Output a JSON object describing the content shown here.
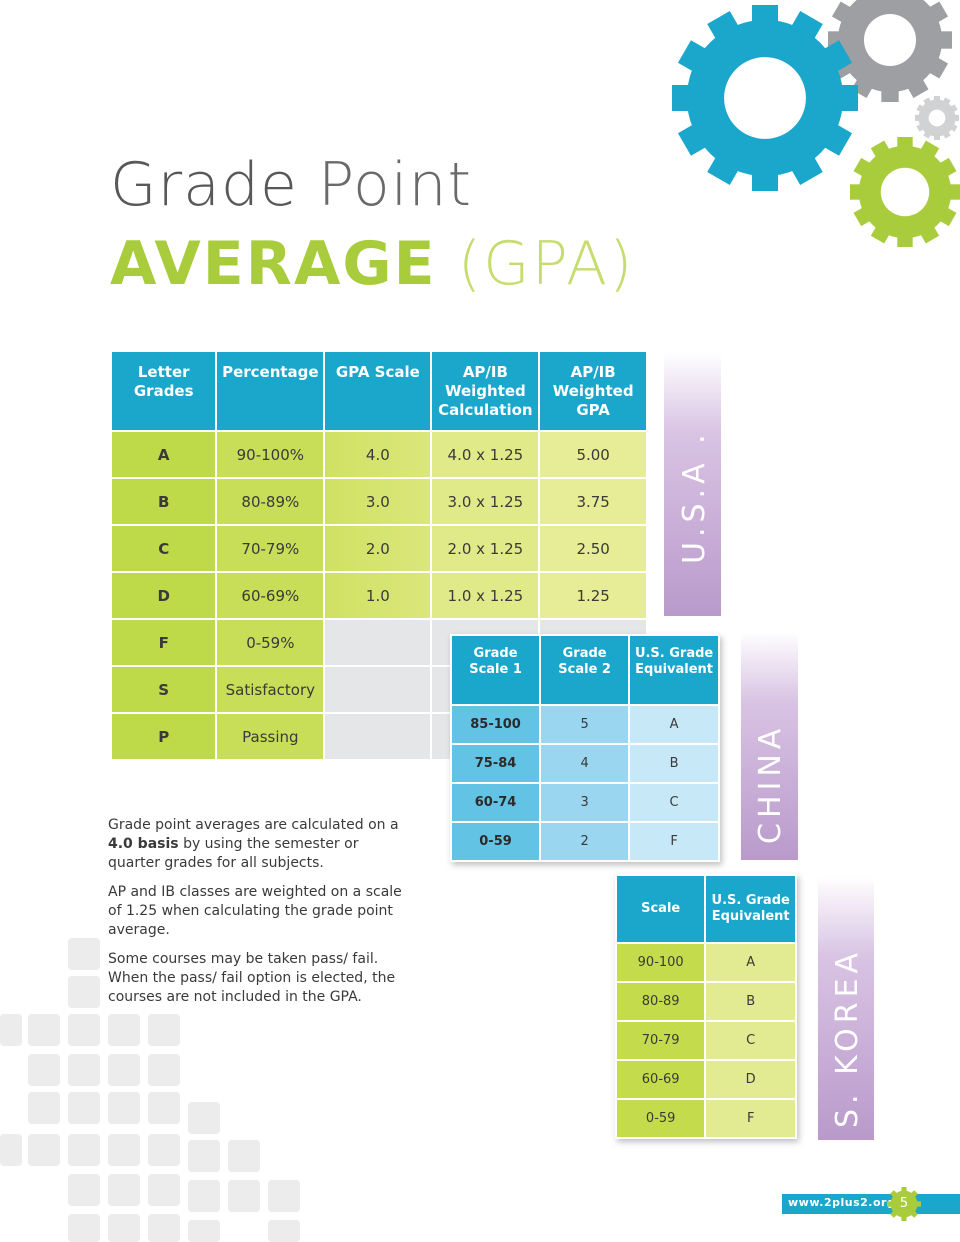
{
  "title": {
    "line1_a": "Grade",
    "line1_b": "Point",
    "line2_a": "AVERAGE",
    "line2_b": "(GPA)"
  },
  "us_table": {
    "headers": [
      "Letter Grades",
      "Percentage",
      "GPA Scale",
      "AP/IB Weighted Calculation",
      "AP/IB Weighted GPA"
    ],
    "rows": [
      {
        "letter": "A",
        "pct": "90-100%",
        "gpa": "4.0",
        "calc": "4.0 x 1.25",
        "wgpa": "5.00"
      },
      {
        "letter": "B",
        "pct": "80-89%",
        "gpa": "3.0",
        "calc": "3.0 x 1.25",
        "wgpa": "3.75"
      },
      {
        "letter": "C",
        "pct": "70-79%",
        "gpa": "2.0",
        "calc": "2.0 x 1.25",
        "wgpa": "2.50"
      },
      {
        "letter": "D",
        "pct": "60-69%",
        "gpa": "1.0",
        "calc": "1.0 x 1.25",
        "wgpa": "1.25"
      },
      {
        "letter": "F",
        "pct": "0-59%"
      },
      {
        "letter": "S",
        "pct": "Satisfactory"
      },
      {
        "letter": "P",
        "pct": "Passing"
      }
    ]
  },
  "country_labels": {
    "usa": "U.S.A .",
    "china": "CHINA",
    "korea": "S. KOREA"
  },
  "china_table": {
    "headers": [
      "Grade Scale 1",
      "Grade Scale 2",
      "U.S. Grade Equivalent"
    ],
    "rows": [
      [
        "85-100",
        "5",
        "A"
      ],
      [
        "75-84",
        "4",
        "B"
      ],
      [
        "60-74",
        "3",
        "C"
      ],
      [
        "0-59",
        "2",
        "F"
      ]
    ]
  },
  "korea_table": {
    "headers": [
      "Scale",
      "U.S. Grade Equivalent"
    ],
    "rows": [
      [
        "90-100",
        "A"
      ],
      [
        "80-89",
        "B"
      ],
      [
        "70-79",
        "C"
      ],
      [
        "60-69",
        "D"
      ],
      [
        "0-59",
        "F"
      ]
    ]
  },
  "body": {
    "p1_a": "Grade point averages are calculated on a",
    "p1_bold": "4.0 basis",
    "p1_b": "by using the semester or quarter grades for all subjects.",
    "p2": "AP and IB classes are weighted on a scale of 1.25 when calculating the grade point average.",
    "p3": "Some courses may be taken pass/ fail.  When the pass/ fail option is elected, the courses are not included in the GPA."
  },
  "footer": {
    "url": "www.2plus2.org",
    "page": "5"
  },
  "colors": {
    "blue": "#1aa7cb",
    "green": "#a9cc3c",
    "purple": "#b99acb",
    "gray_gear": "#9d9fa2"
  },
  "icons": [
    "blue-gear-icon",
    "gray-gear-icon",
    "green-gear-icon",
    "small-gear-icon"
  ]
}
